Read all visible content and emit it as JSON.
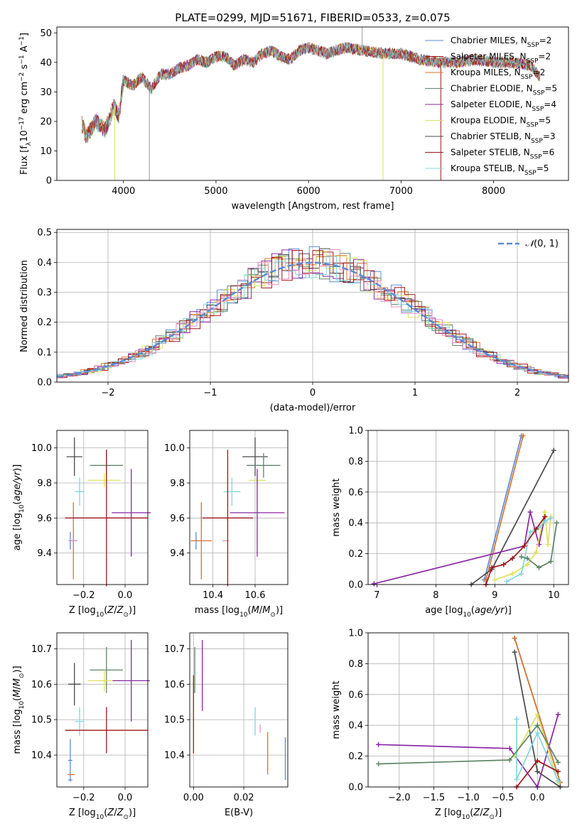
{
  "title": "PLATE=0299, MJD=51671, FIBERID=0533, z=0.075",
  "chart_data": [
    {
      "id": "spectrum",
      "type": "line",
      "xlabel": "wavelength [Angstrom, rest frame]",
      "ylabel": "Flux [fλ10⁻¹⁷ erg cm⁻² s⁻¹ A⁻¹]",
      "xlim": [
        3280,
        8810
      ],
      "ylim": [
        0,
        52
      ],
      "xticks": [
        4000,
        5000,
        6000,
        7000,
        8000
      ],
      "yticks": [
        0,
        10,
        20,
        30,
        40,
        50
      ],
      "grid": false,
      "legend_position": "top-right",
      "envelope": {
        "x": [
          3550,
          3600,
          3700,
          3800,
          3900,
          3950,
          4000,
          4100,
          4200,
          4300,
          4400,
          4500,
          4600,
          4700,
          4800,
          4900,
          5000,
          5100,
          5200,
          5300,
          5400,
          5500,
          5600,
          5700,
          5800,
          5900,
          6000,
          6200,
          6400,
          6600,
          6800,
          7000,
          7200,
          7400,
          7600,
          7800,
          8000,
          8200,
          8400,
          8500
        ],
        "y": [
          19,
          15,
          20,
          17,
          25,
          22,
          34,
          32,
          35,
          31,
          36,
          36,
          38,
          39,
          41,
          40,
          42,
          42,
          39,
          41,
          40,
          43,
          44,
          42,
          41,
          44,
          45,
          43,
          45,
          44,
          43,
          43,
          41,
          40,
          40,
          41,
          40,
          40,
          39,
          35
        ]
      },
      "series": [
        {
          "name": "Chabrier MILES, N_SSP=2",
          "color": "#5a8ad6"
        },
        {
          "name": "Salpeter MILES, N_SSP=2",
          "color": "#a01619"
        },
        {
          "name": "Kroupa MILES, N_SSP=2",
          "color": "#d9732a"
        },
        {
          "name": "Chabrier ELODIE, N_SSP=5",
          "color": "#5e8566"
        },
        {
          "name": "Salpeter ELODIE, N_SSP=4",
          "color": "#8b26a6"
        },
        {
          "name": "Kroupa ELODIE, N_SSP=5",
          "color": "#dfe05e"
        },
        {
          "name": "Chabrier STELIB, N_SSP=3",
          "color": "#4a4a4a"
        },
        {
          "name": "Salpeter STELIB, N_SSP=6",
          "color": "#a01619"
        },
        {
          "name": "Kroupa STELIB, N_SSP=5",
          "color": "#7fd7df"
        }
      ],
      "legend_labels": [
        {
          "pre": "Chabrier MILES, N",
          "sub": "SSP",
          "post": "=2"
        },
        {
          "pre": "Salpeter MILES, N",
          "sub": "SSP",
          "post": "=2"
        },
        {
          "pre": "Kroupa MILES, N",
          "sub": "SSP",
          "post": "=2"
        },
        {
          "pre": "Chabrier ELODIE, N",
          "sub": "SSP",
          "post": "=5"
        },
        {
          "pre": "Salpeter ELODIE, N",
          "sub": "SSP",
          "post": "=4"
        },
        {
          "pre": "Kroupa ELODIE, N",
          "sub": "SSP",
          "post": "=5"
        },
        {
          "pre": "Chabrier STELIB, N",
          "sub": "SSP",
          "post": "=3"
        },
        {
          "pre": "Salpeter STELIB, N",
          "sub": "SSP",
          "post": "=6"
        },
        {
          "pre": "Kroupa STELIB, N",
          "sub": "SSP",
          "post": "=5"
        }
      ]
    },
    {
      "id": "residuals",
      "type": "step",
      "xlabel": "(data-model)/error",
      "ylabel": "Normed distribution",
      "xlim": [
        -2.5,
        2.5
      ],
      "ylim": [
        0,
        0.51
      ],
      "xticks": [
        -2,
        -1,
        0,
        1,
        2
      ],
      "xtick_labels": [
        "−2",
        "−1",
        "0",
        "1",
        "2"
      ],
      "yticks": [
        0.0,
        0.1,
        0.2,
        0.3,
        0.4,
        0.5
      ],
      "ytick_labels": [
        "0.0",
        "0.1",
        "0.2",
        "0.3",
        "0.4",
        "0.5"
      ],
      "grid": true,
      "bin_width": 0.1,
      "reference_curve": {
        "name": "N(0,1)",
        "label_text": "(0, 1)",
        "style": "dashed",
        "color": "#5a8ad6"
      },
      "legend_position": "top-right"
    },
    {
      "id": "age-vs-Z",
      "type": "scatter",
      "xlabel": "Z [log10(Z/Z⊙)]",
      "ylabel": "age [log10(age/yr)]",
      "xlim": [
        -0.33,
        0.11
      ],
      "ylim": [
        9.22,
        10.1
      ],
      "xticks": [
        -0.2,
        0.0
      ],
      "xtick_labels": [
        "−0.2",
        "0.0"
      ],
      "yticks": [
        9.4,
        9.6,
        9.8,
        10.0
      ],
      "ytick_labels": [
        "9.4",
        "9.6",
        "9.8",
        "10.0"
      ],
      "grid": true,
      "points": [
        {
          "x": -0.265,
          "xerr": 0.008,
          "y": 9.47,
          "yerr": 0.05,
          "color": "#5a8ad6"
        },
        {
          "x": -0.25,
          "xerr": 0.012,
          "y": 9.47,
          "yerr": 0.22,
          "color": "#d9732a"
        },
        {
          "x": -0.25,
          "xerr": 0.02,
          "y": 9.47,
          "yerr": 0.0,
          "color": "#e78fc0"
        },
        {
          "x": -0.245,
          "xerr": 0.038,
          "y": 9.95,
          "yerr": 0.11,
          "color": "#4a4a4a"
        },
        {
          "x": -0.22,
          "xerr": 0.022,
          "y": 9.75,
          "yerr": 0.08,
          "color": "#7fd7df"
        },
        {
          "x": -0.09,
          "xerr": 0.08,
          "y": 9.9,
          "yerr": 0.09,
          "color": "#5e8566"
        },
        {
          "x": -0.1,
          "xerr": 0.08,
          "y": 9.815,
          "yerr": 0.04,
          "color": "#dfe05e"
        },
        {
          "x": -0.09,
          "xerr": 0.2,
          "y": 9.6,
          "yerr": 0.39,
          "color": "#a01619"
        },
        {
          "x": 0.03,
          "xerr": 0.095,
          "y": 9.63,
          "yerr": 0.25,
          "color": "#8b26a6"
        }
      ]
    },
    {
      "id": "age-vs-mass",
      "type": "scatter",
      "xlabel": "mass [log10(M/M⊙)]",
      "ylabel": "",
      "xlim": [
        10.29,
        10.755
      ],
      "ylim": [
        9.22,
        10.1
      ],
      "xticks": [
        10.4,
        10.6
      ],
      "xtick_labels": [
        "10.4",
        "10.6"
      ],
      "yticks": [
        9.4,
        9.6,
        9.8,
        10.0
      ],
      "ytick_labels": [
        "9.4",
        "9.6",
        "9.8",
        "10.0"
      ],
      "grid": true,
      "points": [
        {
          "x": 10.32,
          "xerr": 0.01,
          "y": 9.47,
          "yerr": 0.05,
          "color": "#5a8ad6"
        },
        {
          "x": 10.345,
          "xerr": 0.05,
          "y": 9.47,
          "yerr": 0.22,
          "color": "#d9732a"
        },
        {
          "x": 10.46,
          "xerr": 0.015,
          "y": 9.47,
          "yerr": 0.0,
          "color": "#e78fc0"
        },
        {
          "x": 10.6,
          "xerr": 0.06,
          "y": 9.95,
          "yerr": 0.11,
          "color": "#4a4a4a"
        },
        {
          "x": 10.49,
          "xerr": 0.04,
          "y": 9.75,
          "yerr": 0.08,
          "color": "#7fd7df"
        },
        {
          "x": 10.64,
          "xerr": 0.08,
          "y": 9.9,
          "yerr": 0.07,
          "color": "#5e8566"
        },
        {
          "x": 10.61,
          "xerr": 0.04,
          "y": 9.815,
          "yerr": 0.04,
          "color": "#dfe05e"
        },
        {
          "x": 10.47,
          "xerr": 0.12,
          "y": 9.6,
          "yerr": 0.39,
          "color": "#a01619"
        },
        {
          "x": 10.61,
          "xerr": 0.13,
          "y": 9.63,
          "yerr": 0.25,
          "color": "#8b26a6"
        }
      ]
    },
    {
      "id": "weight-vs-age",
      "type": "line",
      "xlabel": "age [log10(age/yr)]",
      "ylabel": "mass weight",
      "xlim": [
        6.85,
        10.25
      ],
      "ylim": [
        0,
        1.0
      ],
      "xticks": [
        7,
        8,
        9,
        10
      ],
      "xtick_labels": [
        "7",
        "8",
        "9",
        "10"
      ],
      "yticks": [
        0.0,
        0.2,
        0.4,
        0.6,
        0.8,
        1.0
      ],
      "ytick_labels": [
        "0.0",
        "0.2",
        "0.4",
        "0.6",
        "0.8",
        "1.0"
      ],
      "grid": true,
      "series": [
        {
          "color": "#5a8ad6",
          "x": [
            8.82,
            9.45
          ],
          "y": [
            0.03,
            0.965
          ]
        },
        {
          "color": "#d9732a",
          "x": [
            8.85,
            9.48
          ],
          "y": [
            0.03,
            0.965
          ]
        },
        {
          "color": "#4a4a4a",
          "x": [
            8.6,
            8.95,
            10.0
          ],
          "y": [
            0.0,
            0.1,
            0.87
          ]
        },
        {
          "color": "#8b26a6",
          "x": [
            6.95,
            9.5,
            9.6,
            9.75,
            9.85
          ],
          "y": [
            0.005,
            0.25,
            0.47,
            0.26,
            0.44
          ]
        },
        {
          "color": "#dfe05e",
          "x": [
            9.0,
            9.3,
            9.55,
            9.7,
            9.85,
            9.9,
            9.95
          ],
          "y": [
            0.03,
            0.07,
            0.13,
            0.21,
            0.47,
            0.26,
            0.44
          ]
        },
        {
          "color": "#7fd7df",
          "x": [
            9.2,
            9.45,
            9.6,
            9.75,
            9.85,
            9.95
          ],
          "y": [
            0.02,
            0.07,
            0.34,
            0.37,
            0.41,
            0.43
          ]
        },
        {
          "color": "#5e8566",
          "x": [
            9.45,
            9.55,
            9.75,
            9.95,
            10.05
          ],
          "y": [
            0.18,
            0.17,
            0.11,
            0.15,
            0.4
          ]
        },
        {
          "color": "#a01619",
          "x": [
            8.85,
            8.95,
            9.15,
            9.3,
            9.5,
            9.7,
            9.85
          ],
          "y": [
            0.0,
            0.11,
            0.13,
            0.17,
            0.25,
            0.36,
            0.44
          ]
        }
      ]
    },
    {
      "id": "mass-vs-Z",
      "type": "scatter",
      "xlabel": "Z [log10(Z/Z⊙)]",
      "ylabel": "mass [log10(M/M⊙)]",
      "xlim": [
        -0.33,
        0.11
      ],
      "ylim": [
        10.31,
        10.745
      ],
      "xticks": [
        -0.2,
        0.0
      ],
      "xtick_labels": [
        "−0.2",
        "0.0"
      ],
      "yticks": [
        10.4,
        10.5,
        10.6,
        10.7
      ],
      "ytick_labels": [
        "10.4",
        "10.5",
        "10.6",
        "10.7"
      ],
      "grid": true,
      "points": [
        {
          "x": -0.265,
          "xerr": 0.01,
          "y": 10.33,
          "yerr": 0.0,
          "color": "#5a8ad6"
        },
        {
          "x": -0.265,
          "xerr": 0.01,
          "y": 10.385,
          "yerr": 0.06,
          "color": "#5a8ad6"
        },
        {
          "x": -0.26,
          "xerr": 0.018,
          "y": 10.345,
          "yerr": 0.0,
          "color": "#d9732a"
        },
        {
          "x": -0.265,
          "xerr": 0.02,
          "y": 10.47,
          "yerr": 0.0,
          "color": "#e78fc0"
        },
        {
          "x": -0.245,
          "xerr": 0.03,
          "y": 10.6,
          "yerr": 0.06,
          "color": "#4a4a4a"
        },
        {
          "x": -0.22,
          "xerr": 0.022,
          "y": 10.495,
          "yerr": 0.04,
          "color": "#7fd7df"
        },
        {
          "x": -0.09,
          "xerr": 0.08,
          "y": 10.64,
          "yerr": 0.065,
          "color": "#5e8566"
        },
        {
          "x": -0.1,
          "xerr": 0.08,
          "y": 10.61,
          "yerr": 0.03,
          "color": "#dfe05e"
        },
        {
          "x": -0.09,
          "xerr": 0.2,
          "y": 10.47,
          "yerr": 0.065,
          "color": "#a01619"
        },
        {
          "x": 0.03,
          "xerr": 0.09,
          "y": 10.61,
          "yerr": 0.115,
          "color": "#8b26a6"
        }
      ]
    },
    {
      "id": "mass-vs-EBV",
      "type": "scatter",
      "xlabel": "E(B-V)",
      "ylabel": "",
      "xlim": [
        -0.0015,
        0.0375
      ],
      "ylim": [
        10.31,
        10.745
      ],
      "xticks": [
        0.0,
        0.02
      ],
      "xtick_labels": [
        "0.00",
        "0.02"
      ],
      "yticks": [
        10.4,
        10.5,
        10.6,
        10.7
      ],
      "ytick_labels": [
        "10.4",
        "10.5",
        "10.6",
        "10.7"
      ],
      "grid": true,
      "points": [
        {
          "x": 0.0,
          "xerr": 0,
          "y": 10.515,
          "yerr": 0.11,
          "color": "#a01619"
        },
        {
          "x": 0.0005,
          "xerr": 0,
          "y": 10.64,
          "yerr": 0.065,
          "color": "#5e8566"
        },
        {
          "x": 0.0035,
          "xerr": 0,
          "y": 10.625,
          "yerr": 0.1,
          "color": "#8b26a6"
        },
        {
          "x": 0.0245,
          "xerr": 0,
          "y": 10.495,
          "yerr": 0.04,
          "color": "#7fd7df"
        },
        {
          "x": 0.0265,
          "xerr": 0,
          "y": 10.475,
          "yerr": 0.012,
          "color": "#e78fc0"
        },
        {
          "x": 0.0295,
          "xerr": 0,
          "y": 10.405,
          "yerr": 0.06,
          "color": "#d9732a"
        },
        {
          "x": 0.0365,
          "xerr": 0,
          "y": 10.39,
          "yerr": 0.06,
          "color": "#5a8ad6"
        }
      ]
    },
    {
      "id": "weight-vs-Z",
      "type": "line",
      "xlabel": "Z [log10(Z/Z⊙)]",
      "ylabel": "mass weight",
      "xlim": [
        -2.45,
        0.45
      ],
      "ylim": [
        0,
        1.0
      ],
      "xticks": [
        -2.0,
        -1.5,
        -1.0,
        -0.5,
        0.0
      ],
      "xtick_labels": [
        "−2.0",
        "−1.5",
        "−1.0",
        "−0.5",
        "0.0"
      ],
      "yticks": [
        0.0,
        0.2,
        0.4,
        0.6,
        0.8,
        1.0
      ],
      "ytick_labels": [
        "0.0",
        "0.2",
        "0.4",
        "0.6",
        "0.8",
        "1.0"
      ],
      "grid": true,
      "series": [
        {
          "color": "#5a8ad6",
          "x": [
            -0.33,
            0.33
          ],
          "y": [
            0.965,
            0.03
          ]
        },
        {
          "color": "#d9732a",
          "x": [
            -0.33,
            0.33
          ],
          "y": [
            0.965,
            0.03
          ]
        },
        {
          "color": "#4a4a4a",
          "x": [
            -0.33,
            0.0,
            0.33
          ],
          "y": [
            0.875,
            0.1,
            0.0
          ]
        },
        {
          "color": "#8b26a6",
          "x": [
            -2.3,
            -0.4,
            0.0,
            0.3
          ],
          "y": [
            0.275,
            0.25,
            0.0,
            0.47
          ]
        },
        {
          "color": "#dfe05e",
          "x": [
            -0.33,
            0.0,
            0.3
          ],
          "y": [
            0.2,
            0.47,
            0.03
          ]
        },
        {
          "color": "#7fd7df",
          "x": [
            -0.3,
            -0.3,
            0.0,
            0.3
          ],
          "y": [
            0.44,
            0.05,
            0.35,
            0.04
          ]
        },
        {
          "color": "#5e8566",
          "x": [
            -2.3,
            -0.4,
            0.0,
            0.3
          ],
          "y": [
            0.15,
            0.175,
            0.4,
            0.16
          ]
        },
        {
          "color": "#a01619",
          "x": [
            -0.3,
            0.0,
            0.3
          ],
          "y": [
            0.0,
            0.17,
            0.1
          ]
        }
      ]
    }
  ]
}
